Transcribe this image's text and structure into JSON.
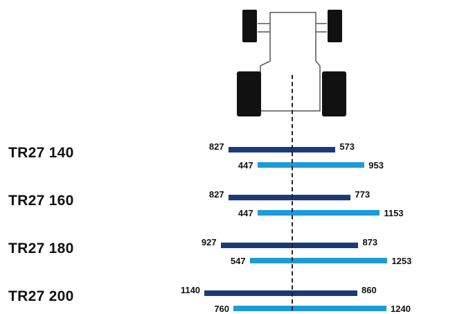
{
  "colors": {
    "dark_bar": "#1b3a78",
    "light_bar": "#1e9bd7",
    "tractor_wheel": "#111111"
  },
  "icons": [
    "tractor-top-view-icon"
  ],
  "chart_data": {
    "type": "bar",
    "center_axis": "dashed",
    "rows": [
      {
        "label": "TR27 140",
        "dark": {
          "left": 827,
          "right": 573
        },
        "light": {
          "left": 447,
          "right": 953
        }
      },
      {
        "label": "TR27 160",
        "dark": {
          "left": 827,
          "right": 773
        },
        "light": {
          "left": 447,
          "right": 1153
        }
      },
      {
        "label": "TR27 180",
        "dark": {
          "left": 927,
          "right": 873
        },
        "light": {
          "left": 547,
          "right": 1253
        }
      },
      {
        "label": "TR27 200",
        "dark": {
          "left": 1140,
          "right": 860
        },
        "light": {
          "left": 760,
          "right": 1240
        }
      }
    ]
  }
}
